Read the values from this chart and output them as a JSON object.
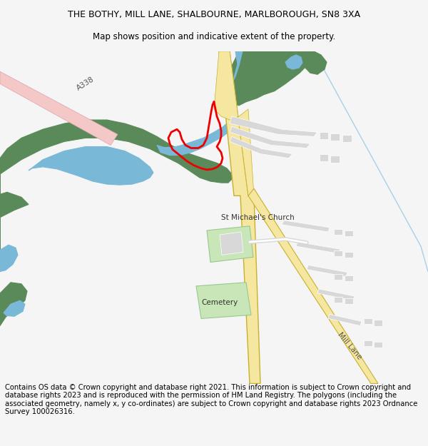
{
  "title_line1": "THE BOTHY, MILL LANE, SHALBOURNE, MARLBOROUGH, SN8 3XA",
  "title_line2": "Map shows position and indicative extent of the property.",
  "footer": "Contains OS data © Crown copyright and database right 2021. This information is subject to Crown copyright and database rights 2023 and is reproduced with the permission of HM Land Registry. The polygons (including the associated geometry, namely x, y co-ordinates) are subject to Crown copyright and database rights 2023 Ordnance Survey 100026316.",
  "bg_color": "#f5f5f5",
  "map_bg": "#ffffff",
  "title_fontsize": 9,
  "footer_fontsize": 7.2,
  "road_a338_color": "#f5c8c8",
  "main_road_color": "#f5e6a0",
  "main_road_stroke": "#c8b030",
  "green_area_color": "#5a8a5a",
  "water_color": "#7ab8d8",
  "light_green_color": "#c8e6b8",
  "building_color": "#d8d8d8",
  "plot_outline_color": "#ee0000",
  "thin_road_color": "#d8d8d8",
  "light_blue_line": "#a8d0e8",
  "road_label_a338": "A338",
  "road_label_mill": "Mill Lane",
  "label_church": "St Michael's Church",
  "label_cemetery": "Cemetery"
}
